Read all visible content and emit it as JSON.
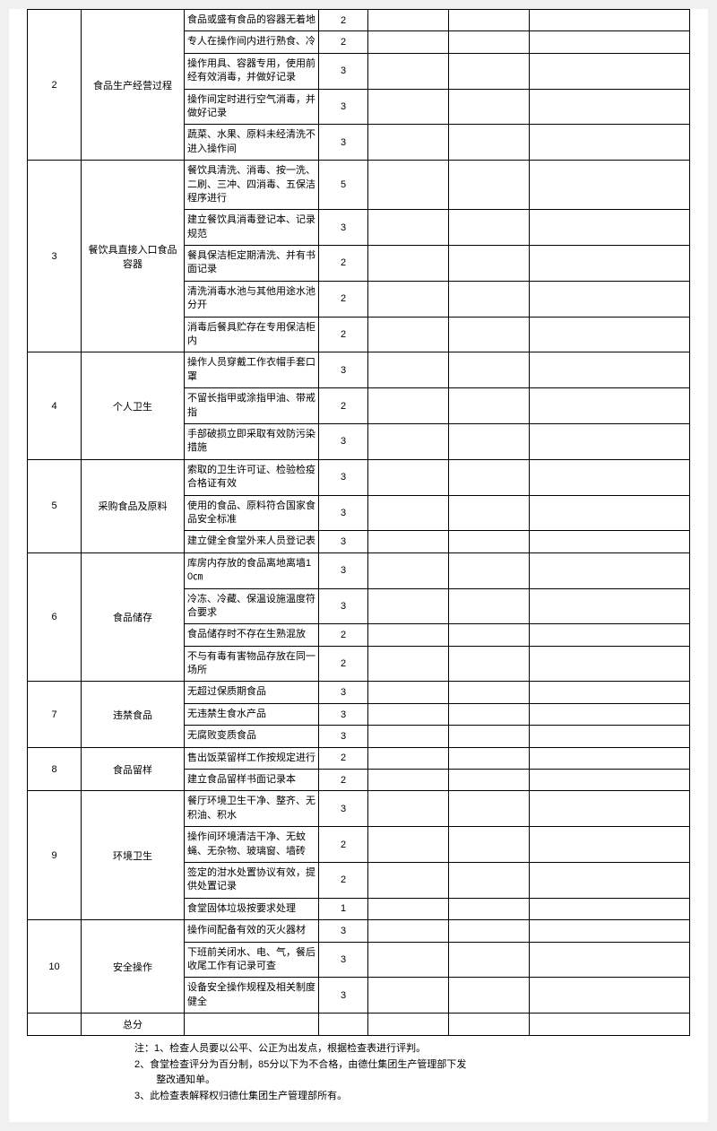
{
  "sections": [
    {
      "idx": "2",
      "category": "食品生产经营过程",
      "rows": [
        {
          "item": "食品或盛有食品的容器无着地",
          "score": "2"
        },
        {
          "item": "专人在操作间内进行熟食、冷",
          "score": "2"
        },
        {
          "item": "操作用具、容器专用，使用前经有效消毒，并做好记录",
          "score": "3"
        },
        {
          "item": "操作间定时进行空气消毒，并做好记录",
          "score": "3"
        },
        {
          "item": "蔬菜、水果、原料未经清洗不进入操作间",
          "score": "3"
        }
      ]
    },
    {
      "idx": "3",
      "category": "餐饮具直接入口食品容器",
      "rows": [
        {
          "item": "餐饮具清洗、消毒、按一洗、二刷、三冲、四消毒、五保洁程序进行",
          "score": "5"
        },
        {
          "item": "建立餐饮具消毒登记本、记录规范",
          "score": "3"
        },
        {
          "item": "餐具保洁柜定期清洗、并有书面记录",
          "score": "2"
        },
        {
          "item": "清洗消毒水池与其他用途水池分开",
          "score": "2"
        },
        {
          "item": "消毒后餐具贮存在专用保洁柜内",
          "score": "2"
        }
      ]
    },
    {
      "idx": "4",
      "category": "个人卫生",
      "rows": [
        {
          "item": "操作人员穿戴工作衣帽手套口罩",
          "score": "3"
        },
        {
          "item": "不留长指甲或涂指甲油、带戒指",
          "score": "2"
        },
        {
          "item": "手部破损立即采取有效防污染措施",
          "score": "3"
        }
      ]
    },
    {
      "idx": "5",
      "category": "采购食品及原料",
      "rows": [
        {
          "item": "索取的卫生许可证、检验检疫合格证有效",
          "score": "3"
        },
        {
          "item": "使用的食品、原料符合国家食品安全标准",
          "score": "3"
        },
        {
          "item": "建立健全食堂外来人员登记表",
          "score": "3"
        }
      ]
    },
    {
      "idx": "6",
      "category": "食品储存",
      "rows": [
        {
          "item": "库房内存放的食品离地离墙10㎝",
          "score": "3"
        },
        {
          "item": "冷冻、冷藏、保温设施温度符合要求",
          "score": "3"
        },
        {
          "item": "食品储存时不存在生熟混放",
          "score": "2"
        },
        {
          "item": "不与有毒有害物品存放在同一场所",
          "score": "2"
        }
      ]
    },
    {
      "idx": "7",
      "category": "违禁食品",
      "rows": [
        {
          "item": "无超过保质期食品",
          "score": "3"
        },
        {
          "item": "无违禁生食水产品",
          "score": "3"
        },
        {
          "item": "无腐败变质食品",
          "score": "3"
        }
      ]
    },
    {
      "idx": "8",
      "category": "食品留样",
      "rows": [
        {
          "item": "售出饭菜留样工作按规定进行",
          "score": "2"
        },
        {
          "item": "建立食品留样书面记录本",
          "score": "2"
        }
      ]
    },
    {
      "idx": "9",
      "category": "环境卫生",
      "rows": [
        {
          "item": "餐厅环境卫生干净、整齐、无积油、积水",
          "score": "3"
        },
        {
          "item": "操作间环境清洁干净、无蚊蝇、无杂物、玻璃窗、墙砖",
          "score": "2"
        },
        {
          "item": "签定的泔水处置协议有效，提供处置记录",
          "score": "2"
        },
        {
          "item": "食堂固体垃圾按要求处理",
          "score": "1"
        }
      ]
    },
    {
      "idx": "10",
      "category": "安全操作",
      "rows": [
        {
          "item": "操作间配备有效的灭火器材",
          "score": "3"
        },
        {
          "item": "下班前关闭水、电、气，餐后收尾工作有记录可查",
          "score": "3"
        },
        {
          "item": "设备安全操作规程及相关制度健全",
          "score": "3"
        }
      ]
    }
  ],
  "totalLabel": "总分",
  "notes": {
    "n1": "注：1、检查人员要以公平、公正为出发点，根据检查表进行评判。",
    "n2": "2、食堂检查评分为百分制，85分以下为不合格，由德仕集团生产管理部下发",
    "n2b": "整改通知单。",
    "n3": "3、此检查表解释权归德仕集团生产管理部所有。"
  }
}
